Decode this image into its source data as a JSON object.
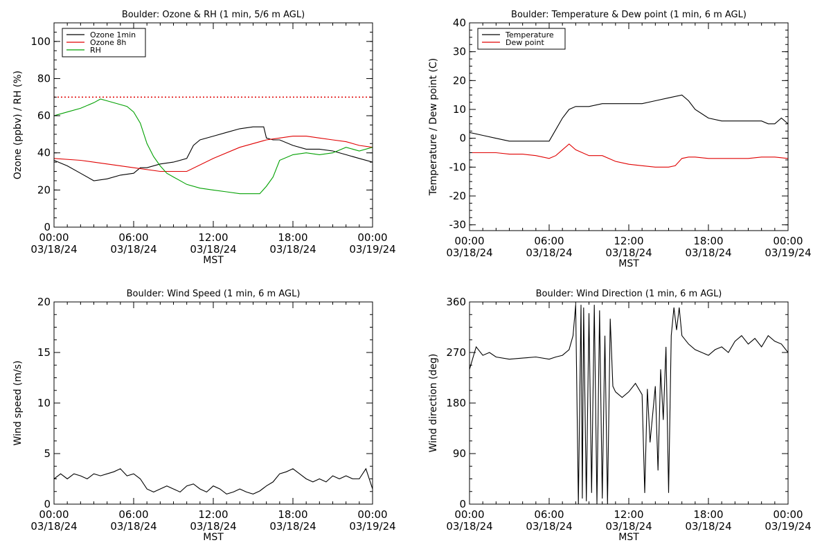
{
  "chart_data": [
    {
      "type": "line",
      "title": "Boulder: Ozone & RH (1 min, 5/6 m AGL)",
      "xlabel": "MST",
      "ylabel": "Ozone (ppbv) / RH (%)",
      "x_ticks": [
        "00:00",
        "06:00",
        "12:00",
        "18:00",
        "00:00"
      ],
      "x_tick_dates": [
        "03/18/24",
        "03/18/24",
        "03/18/24",
        "03/18/24",
        "03/19/24"
      ],
      "xlim_hours": [
        0,
        24
      ],
      "ylim": [
        0,
        110
      ],
      "y_ticks": [
        0,
        20,
        40,
        60,
        80,
        100
      ],
      "legend_position": "top-left",
      "reference_lines": [
        {
          "y": 70,
          "color": "#e00000",
          "style": "dotted"
        }
      ],
      "series": [
        {
          "name": "Ozone 1min",
          "color": "#000000",
          "x": [
            0,
            1,
            2,
            3,
            4,
            5,
            6,
            6.5,
            7,
            8,
            9,
            10,
            10.5,
            11,
            12,
            13,
            14,
            15,
            15.8,
            16,
            16.5,
            17,
            18,
            19,
            20,
            21,
            22,
            23,
            24
          ],
          "y": [
            36,
            33,
            29,
            25,
            26,
            28,
            29,
            32,
            32,
            34,
            35,
            37,
            44,
            47,
            49,
            51,
            53,
            54,
            54,
            48,
            47,
            47,
            44,
            42,
            42,
            41,
            39,
            37,
            35
          ]
        },
        {
          "name": "Ozone 8h",
          "color": "#e00000",
          "x": [
            0,
            2,
            4,
            6,
            8,
            9,
            10,
            12,
            14,
            16,
            17,
            18,
            19,
            20,
            21,
            22,
            23,
            24
          ],
          "y": [
            37,
            36,
            34,
            32,
            30,
            30,
            30,
            37,
            43,
            47,
            48,
            49,
            49,
            48,
            47,
            46,
            44,
            43
          ]
        },
        {
          "name": "RH",
          "color": "#00a000",
          "x": [
            0,
            1,
            2,
            3,
            3.5,
            4,
            5,
            5.5,
            6,
            6.5,
            7,
            7.5,
            8,
            8.5,
            9,
            10,
            11,
            12,
            13,
            14,
            15,
            15.5,
            16,
            16.5,
            17,
            18,
            19,
            20,
            21,
            22,
            23,
            24
          ],
          "y": [
            60,
            62,
            64,
            67,
            69,
            68,
            66,
            65,
            62,
            56,
            45,
            38,
            33,
            29,
            27,
            23,
            21,
            20,
            19,
            18,
            18,
            18,
            22,
            27,
            36,
            39,
            40,
            39,
            40,
            43,
            41,
            43
          ]
        }
      ]
    },
    {
      "type": "line",
      "title": "Boulder: Temperature & Dew point (1 min, 6 m AGL)",
      "xlabel": "MST",
      "ylabel": "Temperature / Dew point (C)",
      "x_ticks": [
        "00:00",
        "06:00",
        "12:00",
        "18:00",
        "00:00"
      ],
      "x_tick_dates": [
        "03/18/24",
        "03/18/24",
        "03/18/24",
        "03/18/24",
        "03/19/24"
      ],
      "xlim_hours": [
        0,
        24
      ],
      "ylim": [
        -32,
        40
      ],
      "y_ticks": [
        -30,
        -20,
        -10,
        0,
        10,
        20,
        30,
        40
      ],
      "legend_position": "top-left",
      "series": [
        {
          "name": "Temperature",
          "color": "#000000",
          "x": [
            0,
            1,
            2,
            3,
            4,
            5,
            6,
            6.5,
            7,
            7.5,
            8,
            9,
            10,
            11,
            12,
            13,
            14,
            15,
            16,
            16.5,
            17,
            18,
            19,
            20,
            21,
            22,
            22.5,
            23,
            23.5,
            24
          ],
          "y": [
            2,
            1,
            0,
            -1,
            -1,
            -1,
            -1,
            3,
            7,
            10,
            11,
            11,
            12,
            12,
            12,
            12,
            13,
            14,
            15,
            13,
            10,
            7,
            6,
            6,
            6,
            6,
            5,
            5,
            7,
            5
          ]
        },
        {
          "name": "Dew point",
          "color": "#e00000",
          "x": [
            0,
            1,
            2,
            3,
            4,
            5,
            6,
            6.5,
            7,
            7.5,
            8,
            9,
            10,
            11,
            12,
            13,
            14,
            15,
            15.5,
            16,
            16.5,
            17,
            18,
            19,
            20,
            21,
            22,
            23,
            24
          ],
          "y": [
            -5,
            -5,
            -5,
            -5.5,
            -5.5,
            -6,
            -7,
            -6,
            -4,
            -2,
            -4,
            -6,
            -6,
            -8,
            -9,
            -9.5,
            -10,
            -10,
            -9.5,
            -7,
            -6.5,
            -6.5,
            -7,
            -7,
            -7,
            -7,
            -6.5,
            -6.5,
            -7
          ]
        }
      ]
    },
    {
      "type": "line",
      "title": "Boulder: Wind Speed (1 min, 6 m AGL)",
      "xlabel": "MST",
      "ylabel": "Wind speed (m/s)",
      "x_ticks": [
        "00:00",
        "06:00",
        "12:00",
        "18:00",
        "00:00"
      ],
      "x_tick_dates": [
        "03/18/24",
        "03/18/24",
        "03/18/24",
        "03/18/24",
        "03/19/24"
      ],
      "xlim_hours": [
        0,
        24
      ],
      "ylim": [
        0,
        20
      ],
      "y_ticks": [
        0,
        5,
        10,
        15,
        20
      ],
      "series": [
        {
          "name": "",
          "color": "#000000",
          "x": [
            0,
            0.5,
            1,
            1.5,
            2,
            2.5,
            3,
            3.5,
            4,
            4.5,
            5,
            5.5,
            6,
            6.5,
            7,
            7.5,
            8,
            8.5,
            9,
            9.5,
            10,
            10.5,
            11,
            11.5,
            12,
            12.5,
            13,
            13.5,
            14,
            14.5,
            15,
            15.5,
            16,
            16.5,
            17,
            17.5,
            18,
            18.5,
            19,
            19.5,
            20,
            20.5,
            21,
            21.5,
            22,
            22.5,
            23,
            23.5,
            24
          ],
          "y": [
            2.5,
            3,
            2.5,
            3,
            2.8,
            2.5,
            3,
            2.8,
            3,
            3.2,
            3.5,
            2.8,
            3,
            2.5,
            1.5,
            1.2,
            1.5,
            1.8,
            1.5,
            1.2,
            1.8,
            2,
            1.5,
            1.2,
            1.8,
            1.5,
            1,
            1.2,
            1.5,
            1.2,
            1,
            1.3,
            1.8,
            2.2,
            3,
            3.2,
            3.5,
            3,
            2.5,
            2.2,
            2.5,
            2.2,
            2.8,
            2.5,
            2.8,
            2.5,
            2.5,
            3.5,
            1.5
          ]
        }
      ]
    },
    {
      "type": "line",
      "title": "Boulder: Wind Direction (1 min, 6 m AGL)",
      "xlabel": "MST",
      "ylabel": "Wind direction (deg)",
      "x_ticks": [
        "00:00",
        "06:00",
        "12:00",
        "18:00",
        "00:00"
      ],
      "x_tick_dates": [
        "03/18/24",
        "03/18/24",
        "03/18/24",
        "03/18/24",
        "03/19/24"
      ],
      "xlim_hours": [
        0,
        24
      ],
      "ylim": [
        0,
        360
      ],
      "y_ticks": [
        0,
        90,
        180,
        270,
        360
      ],
      "series": [
        {
          "name": "",
          "color": "#000000",
          "x": [
            0,
            0.5,
            1,
            1.5,
            2,
            3,
            4,
            5,
            6,
            6.5,
            7,
            7.5,
            7.8,
            8,
            8.2,
            8.4,
            8.5,
            8.6,
            8.8,
            9,
            9.2,
            9.4,
            9.6,
            9.8,
            10,
            10.2,
            10.4,
            10.6,
            10.8,
            11,
            11.5,
            12,
            12.5,
            13,
            13.2,
            13.4,
            13.6,
            14,
            14.2,
            14.4,
            14.6,
            14.8,
            15,
            15.2,
            15.4,
            15.6,
            15.8,
            16,
            16.5,
            17,
            17.5,
            18,
            18.5,
            19,
            19.5,
            20,
            20.5,
            21,
            21.5,
            22,
            22.5,
            23,
            23.5,
            24
          ],
          "y": [
            240,
            280,
            265,
            270,
            262,
            258,
            260,
            262,
            258,
            262,
            265,
            275,
            300,
            355,
            0,
            355,
            10,
            350,
            5,
            340,
            20,
            355,
            0,
            345,
            10,
            300,
            0,
            330,
            210,
            200,
            190,
            200,
            215,
            195,
            20,
            205,
            110,
            210,
            60,
            240,
            150,
            280,
            20,
            300,
            350,
            310,
            350,
            300,
            285,
            275,
            270,
            265,
            275,
            280,
            270,
            290,
            300,
            285,
            295,
            280,
            300,
            290,
            285,
            270
          ]
        }
      ]
    }
  ]
}
